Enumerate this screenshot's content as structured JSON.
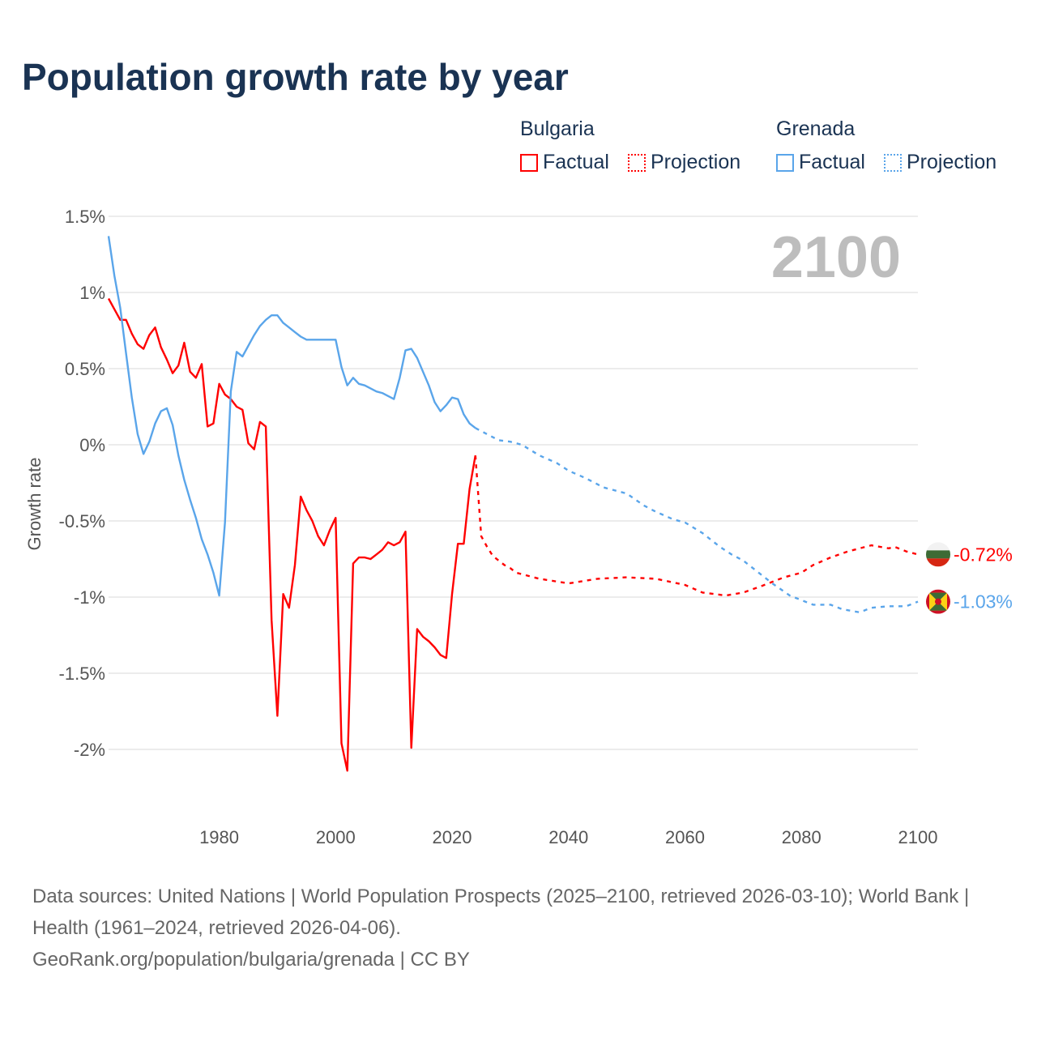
{
  "title": "Population growth rate by year",
  "legend": {
    "groups": [
      {
        "name": "Bulgaria",
        "color": "#ff0000",
        "factual": "Factual",
        "projection": "Projection"
      },
      {
        "name": "Grenada",
        "color": "#5aa5ea",
        "factual": "Factual",
        "projection": "Projection"
      }
    ]
  },
  "chart_data": {
    "type": "line",
    "title": "Population growth rate by year",
    "ylabel": "Growth rate",
    "xlabel": "",
    "year_label": "2100",
    "xlim": [
      1961,
      2100
    ],
    "ylim": [
      -2.3,
      1.5
    ],
    "x_ticks": [
      1980,
      2000,
      2020,
      2040,
      2060,
      2080,
      2100
    ],
    "x_tick_labels": [
      "1980",
      "2000",
      "2020",
      "2040",
      "2060",
      "2080",
      "2100"
    ],
    "y_ticks": [
      1.5,
      1,
      0.5,
      0,
      -0.5,
      -1,
      -1.5,
      -2
    ],
    "y_tick_labels": [
      "1.5%",
      "1%",
      "0.5%",
      "0%",
      "-0.5%",
      "-1%",
      "-1.5%",
      "-2%"
    ],
    "grid": true,
    "series": [
      {
        "name": "Bulgaria Factual",
        "color": "#ff0000",
        "dashed": false,
        "start_year": 1961,
        "values": [
          0.96,
          0.89,
          0.82,
          0.82,
          0.73,
          0.66,
          0.63,
          0.72,
          0.77,
          0.64,
          0.56,
          0.47,
          0.52,
          0.67,
          0.48,
          0.44,
          0.53,
          0.12,
          0.14,
          0.4,
          0.33,
          0.3,
          0.25,
          0.23,
          0.01,
          -0.03,
          0.15,
          0.12,
          -1.15,
          -1.78,
          -0.98,
          -1.07,
          -0.79,
          -0.34,
          -0.43,
          -0.5,
          -0.6,
          -0.66,
          -0.56,
          -0.48,
          -1.96,
          -2.14,
          -0.78,
          -0.74,
          -0.74,
          -0.75,
          -0.72,
          -0.69,
          -0.64,
          -0.66,
          -0.64,
          -0.57,
          -1.99,
          -1.21,
          -1.26,
          -1.29,
          -1.33,
          -1.38,
          -1.4,
          -0.98,
          -0.65,
          -0.65,
          -0.29,
          -0.07
        ]
      },
      {
        "name": "Bulgaria Projection",
        "color": "#ff0000",
        "dashed": true,
        "x": [
          2024,
          2025,
          2026,
          2027,
          2028,
          2029,
          2030,
          2031,
          2035,
          2040,
          2045,
          2050,
          2055,
          2060,
          2063,
          2065,
          2067,
          2070,
          2073,
          2077,
          2080,
          2082,
          2085,
          2088,
          2092,
          2095,
          2096,
          2098,
          2100
        ],
        "values": [
          -0.07,
          -0.6,
          -0.67,
          -0.73,
          -0.76,
          -0.79,
          -0.81,
          -0.84,
          -0.88,
          -0.91,
          -0.88,
          -0.87,
          -0.88,
          -0.92,
          -0.97,
          -0.98,
          -0.99,
          -0.97,
          -0.93,
          -0.87,
          -0.84,
          -0.79,
          -0.74,
          -0.7,
          -0.66,
          -0.68,
          -0.67,
          -0.7,
          -0.72
        ]
      },
      {
        "name": "Grenada Factual",
        "color": "#5aa5ea",
        "dashed": false,
        "start_year": 1961,
        "values": [
          1.37,
          1.11,
          0.9,
          0.6,
          0.31,
          0.07,
          -0.06,
          0.02,
          0.14,
          0.22,
          0.24,
          0.13,
          -0.07,
          -0.23,
          -0.36,
          -0.48,
          -0.62,
          -0.72,
          -0.84,
          -0.99,
          -0.51,
          0.35,
          0.61,
          0.58,
          0.65,
          0.72,
          0.78,
          0.82,
          0.85,
          0.85,
          0.8,
          0.77,
          0.74,
          0.71,
          0.69,
          0.69,
          0.69,
          0.69,
          0.69,
          0.69,
          0.51,
          0.39,
          0.44,
          0.4,
          0.39,
          0.37,
          0.35,
          0.34,
          0.32,
          0.3,
          0.44,
          0.62,
          0.63,
          0.57,
          0.48,
          0.39,
          0.28,
          0.22,
          0.26,
          0.31,
          0.3,
          0.2,
          0.14,
          0.11
        ]
      },
      {
        "name": "Grenada Projection",
        "color": "#5aa5ea",
        "dashed": true,
        "x": [
          2024,
          2025,
          2028,
          2030,
          2032,
          2035,
          2038,
          2040,
          2043,
          2046,
          2050,
          2053,
          2055,
          2058,
          2060,
          2063,
          2066,
          2068,
          2070,
          2073,
          2075,
          2078,
          2080,
          2082,
          2085,
          2087,
          2090,
          2092,
          2095,
          2098,
          2100
        ],
        "values": [
          0.11,
          0.09,
          0.03,
          0.02,
          0.0,
          -0.07,
          -0.12,
          -0.17,
          -0.22,
          -0.28,
          -0.32,
          -0.4,
          -0.44,
          -0.49,
          -0.51,
          -0.58,
          -0.67,
          -0.72,
          -0.76,
          -0.85,
          -0.91,
          -0.99,
          -1.02,
          -1.05,
          -1.05,
          -1.08,
          -1.1,
          -1.07,
          -1.06,
          -1.06,
          -1.03
        ]
      }
    ],
    "end_labels": [
      {
        "country": "Bulgaria",
        "value": -0.72,
        "text": "-0.72%",
        "color": "#ff0000"
      },
      {
        "country": "Grenada",
        "value": -1.03,
        "text": "-1.03%",
        "color": "#5aa5ea"
      }
    ]
  },
  "footer": {
    "sources": "Data sources: United Nations | World Population Prospects (2025–2100, retrieved 2026-03-10); World Bank | Health (1961–2024, retrieved 2026-04-06).",
    "credit": "GeoRank.org/population/bulgaria/grenada | CC BY"
  }
}
